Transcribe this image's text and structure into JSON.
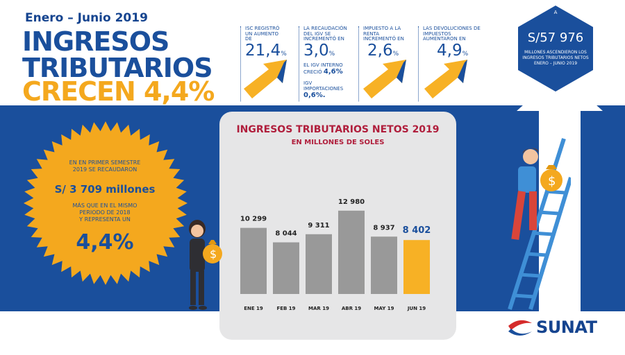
{
  "header": {
    "period": "Enero – Junio 2019",
    "title_line1": "INGRESOS",
    "title_line2": "TRIBUTARIOS",
    "title_line3": "CRECEN 4,4%"
  },
  "stats": [
    {
      "text": "ISC registró un aumento de",
      "value": "21,4",
      "unit": "%"
    },
    {
      "text": "La recaudación del IGV se incrementó en",
      "value": "3,0",
      "unit": "%",
      "detail1_label": "EL IGV INTERNO CRECIÓ",
      "detail1_value": "4,6%",
      "detail2_label": "IGV IMPORTACIONES",
      "detail2_value": "0,6%."
    },
    {
      "text": "Impuesto a la Renta incrementó en",
      "value": "2,6",
      "unit": "%"
    },
    {
      "text": "Las devoluciones de impuestos aumentaron en",
      "value": "4,9",
      "unit": "%"
    }
  ],
  "total": {
    "prefix": "A",
    "value": "S/57 976",
    "caption_line1": "MILLONES ASCENDIERON LOS",
    "caption_line2": "INGRESOS TRIBUTARIOS NETOS",
    "caption_line3": "ENERO – JUNIO 2019"
  },
  "sun": {
    "line1": "EN EN PRIMER SEMESTRE",
    "line2": "2019 SE RECAUDARON",
    "amount": "S/ 3 709 millones",
    "line3": "MÁS QUE EN EL MISMO",
    "line4": "PERIODO DE 2018",
    "line5": "Y REPRESENTA UN",
    "percent": "4,4%"
  },
  "chart_data": {
    "type": "bar",
    "title": "INGRESOS TRIBUTARIOS NETOS 2019",
    "subtitle": "EN MILLONES DE SOLES",
    "categories": [
      "ENE 19",
      "FEB 19",
      "MAR 19",
      "ABR 19",
      "MAY 19",
      "JUN 19"
    ],
    "values": [
      10299,
      8044,
      9311,
      12980,
      8937,
      8402
    ],
    "value_labels": [
      "10 299",
      "8 044",
      "9 311",
      "12 980",
      "8 937",
      "8 402"
    ],
    "ylim": [
      0,
      13500
    ],
    "grid": false,
    "colors": {
      "default": "#999999",
      "highlight": "#f7b125"
    },
    "highlight_index": 5
  },
  "logo": {
    "name": "SUNAT"
  },
  "colors": {
    "blue": "#1a4f9c",
    "orange": "#f4a81e",
    "yellow": "#f7b125",
    "panel": "#e6e6e7"
  }
}
